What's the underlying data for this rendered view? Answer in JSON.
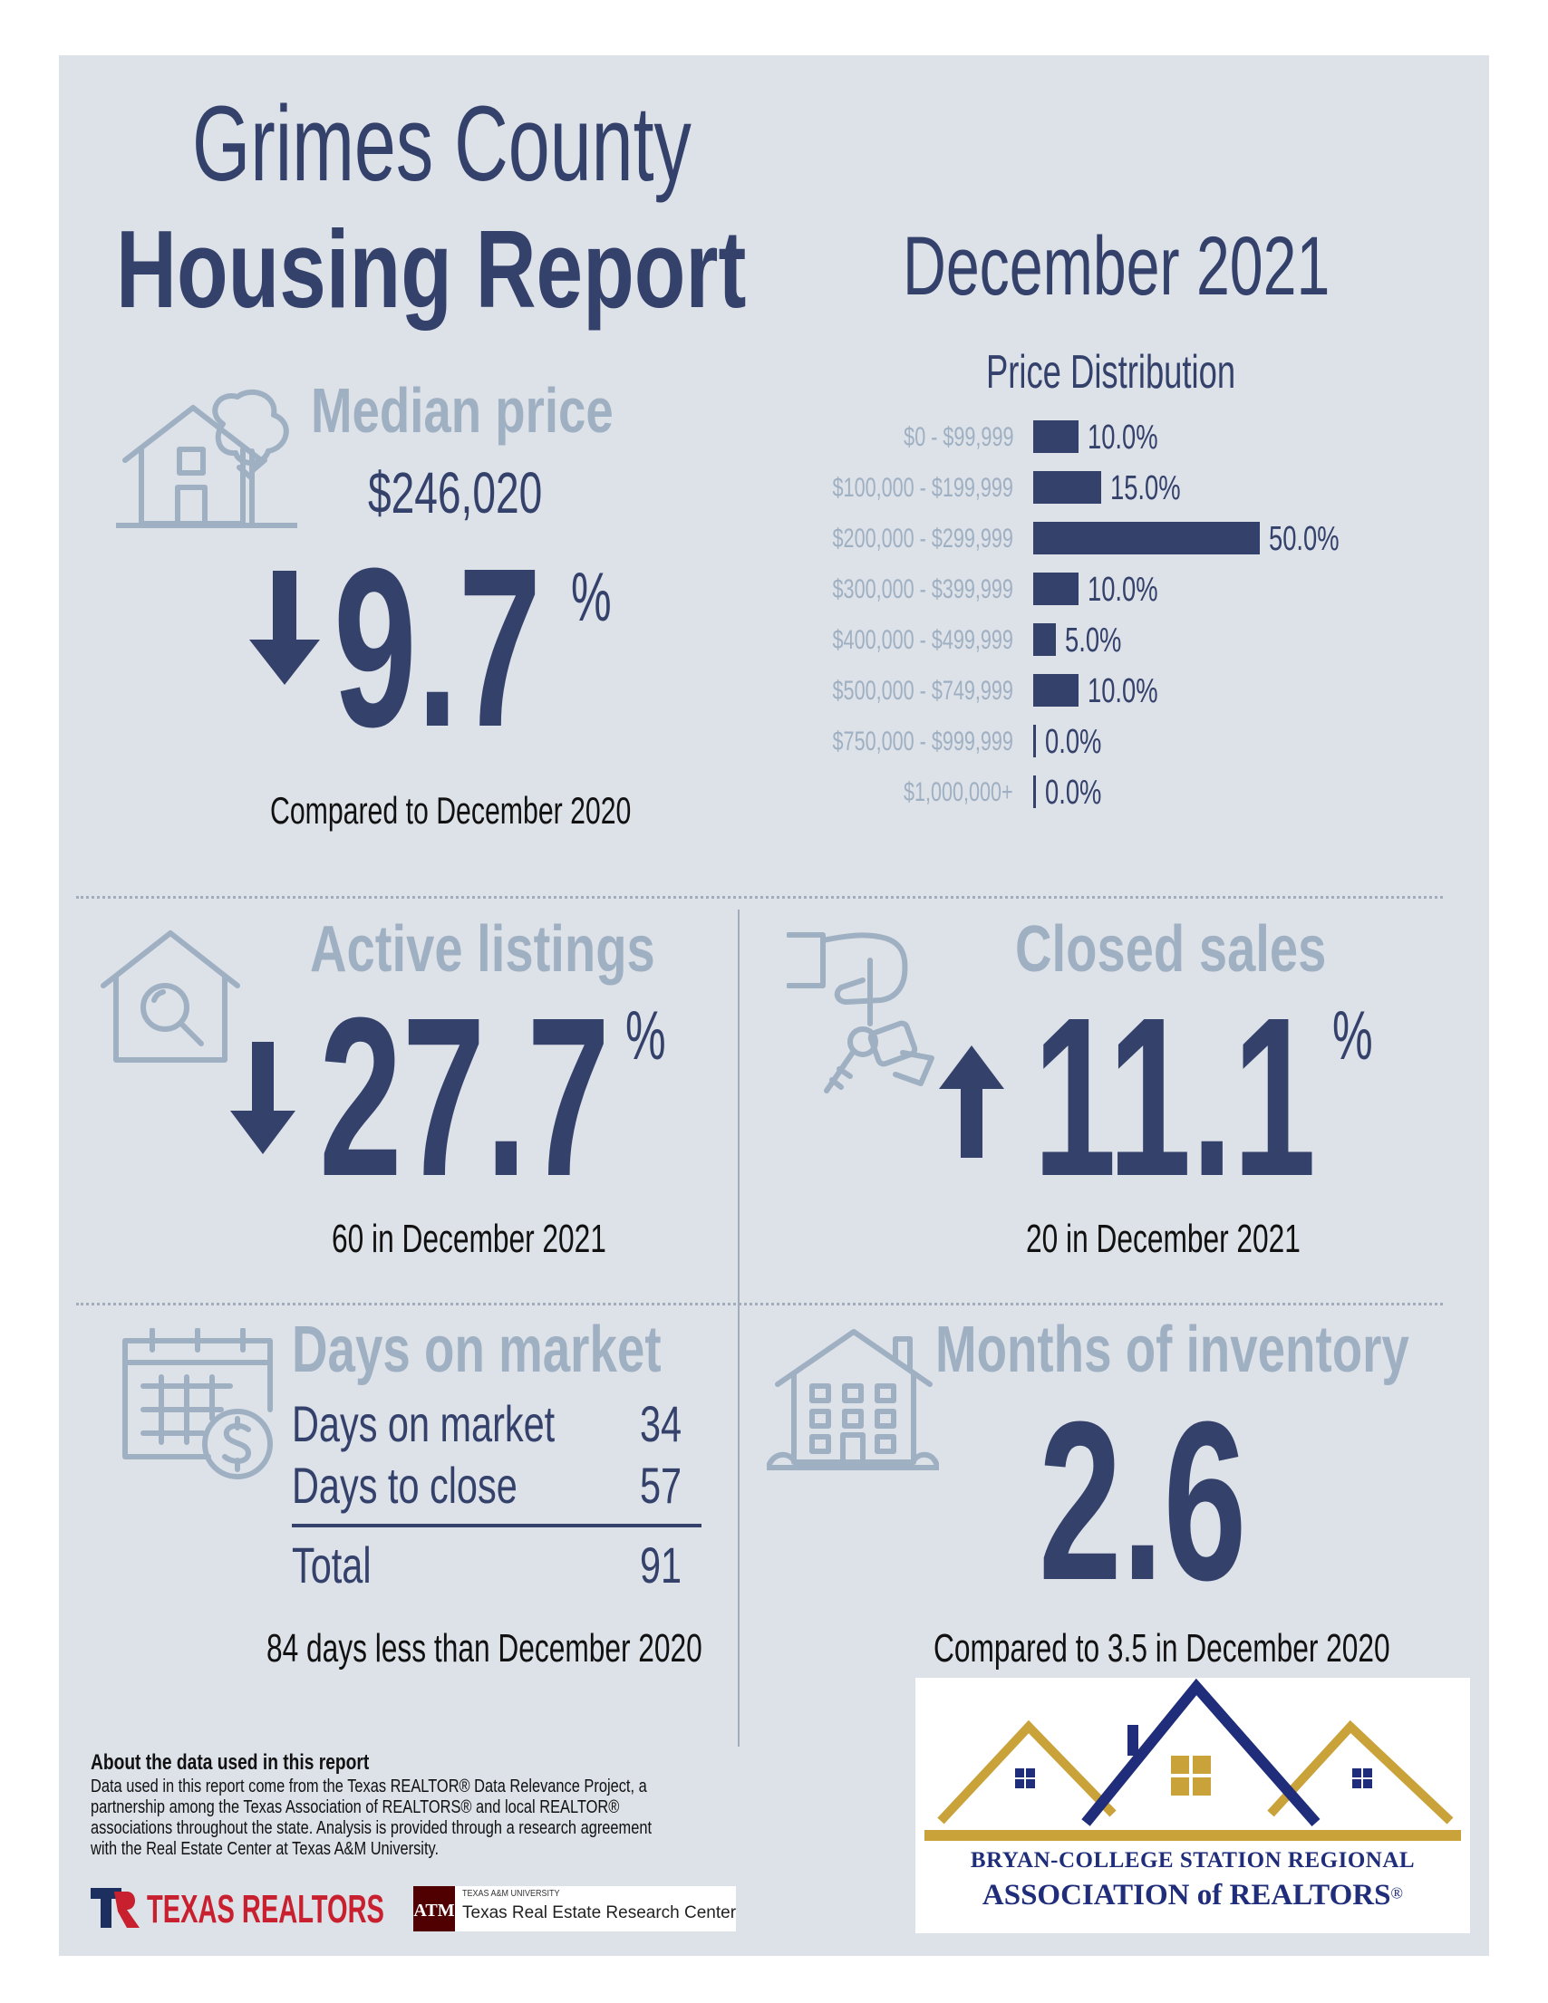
{
  "header": {
    "title_line1": "Grimes County",
    "title_line2": "Housing Report",
    "period": "December 2021"
  },
  "median_price": {
    "label": "Median price",
    "value": "$246,020",
    "change": "9.7",
    "percent_sign": "%",
    "direction": "down",
    "comparison": "Compared to December 2020",
    "icon": "house-with-tree-icon"
  },
  "price_distribution": {
    "title": "Price Distribution",
    "chart_data": {
      "type": "bar",
      "orientation": "horizontal",
      "title": "Price Distribution",
      "categories": [
        "$0 - $99,999",
        "$100,000 - $199,999",
        "$200,000 - $299,999",
        "$300,000 - $399,999",
        "$400,000 - $499,999",
        "$500,000 - $749,999",
        "$750,000 - $999,999",
        "$1,000,000+"
      ],
      "values": [
        10.0,
        15.0,
        50.0,
        10.0,
        5.0,
        10.0,
        0.0,
        0.0
      ],
      "labels": [
        "10.0%",
        "15.0%",
        "50.0%",
        "10.0%",
        "5.0%",
        "10.0%",
        "0.0%",
        "0.0%"
      ],
      "xlim": [
        0,
        50
      ],
      "color": "#34416b"
    }
  },
  "active_listings": {
    "label": "Active listings",
    "change": "27.7",
    "percent_sign": "%",
    "direction": "down",
    "detail": "60 in December 2021",
    "icon": "house-magnifier-icon"
  },
  "closed_sales": {
    "label": "Closed sales",
    "change": "11.1",
    "percent_sign": "%",
    "direction": "up",
    "detail": "20 in December 2021",
    "icon": "hand-with-keys-icon"
  },
  "days_on_market": {
    "label": "Days on market",
    "rows": [
      {
        "label": "Days on market",
        "value": "34"
      },
      {
        "label": "Days to close",
        "value": "57"
      }
    ],
    "total_label": "Total",
    "total_value": "91",
    "comparison": "84 days less than December 2020",
    "icon": "calendar-dollar-icon"
  },
  "months_of_inventory": {
    "label": "Months of inventory",
    "value": "2.6",
    "comparison": "Compared to 3.5 in December 2020",
    "icon": "apartment-building-icon"
  },
  "about": {
    "title": "About the data used in this report",
    "lines": [
      "Data used in this report come from the Texas REALTOR® Data Relevance Project, a",
      "partnership among the Texas Association of REALTORS® and local REALTOR®",
      "associations throughout the state. Analysis is provided through a research agreement",
      "with the Real Estate Center at Texas A&M University."
    ]
  },
  "logos": {
    "texas_realtors": "TEXAS REALTORS",
    "tamu_small": "TEXAS A&M UNIVERSITY",
    "tamu_center": "Texas Real Estate Research Center",
    "bcs_line1": "BRYAN-COLLEGE STATION REGIONAL",
    "bcs_line2": "ASSOCIATION of REALTORS",
    "bcs_reg": "®"
  },
  "colors": {
    "navy": "#34416b",
    "pale": "#9fb0c3",
    "panel": "#dde1e8",
    "gold": "#c9a23a"
  }
}
